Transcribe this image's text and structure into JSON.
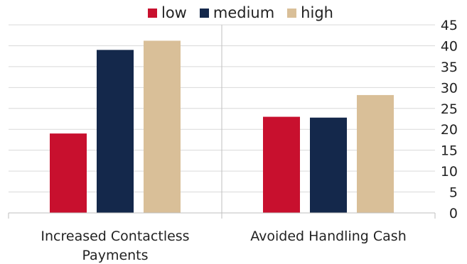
{
  "chart_data": {
    "type": "bar",
    "categories": [
      "Increased Contactless Payments",
      "Avoided Handling Cash"
    ],
    "category_lines": [
      [
        "Increased Contactless",
        "Payments"
      ],
      [
        "Avoided Handling Cash"
      ]
    ],
    "series": [
      {
        "name": "low",
        "color": "#c8102e",
        "values": [
          19,
          23
        ]
      },
      {
        "name": "medium",
        "color": "#14284b",
        "values": [
          39,
          22.8
        ]
      },
      {
        "name": "high",
        "color": "#d9bf98",
        "values": [
          41.2,
          28.2
        ]
      }
    ],
    "ylim": [
      0,
      45
    ],
    "yticks": [
      "0",
      "5",
      "10",
      "15",
      "20",
      "25",
      "30",
      "35",
      "40",
      "45"
    ],
    "y_axis_position": "right",
    "grid": true,
    "legend_position": "top-center",
    "title": "",
    "xlabel": "",
    "ylabel": ""
  }
}
